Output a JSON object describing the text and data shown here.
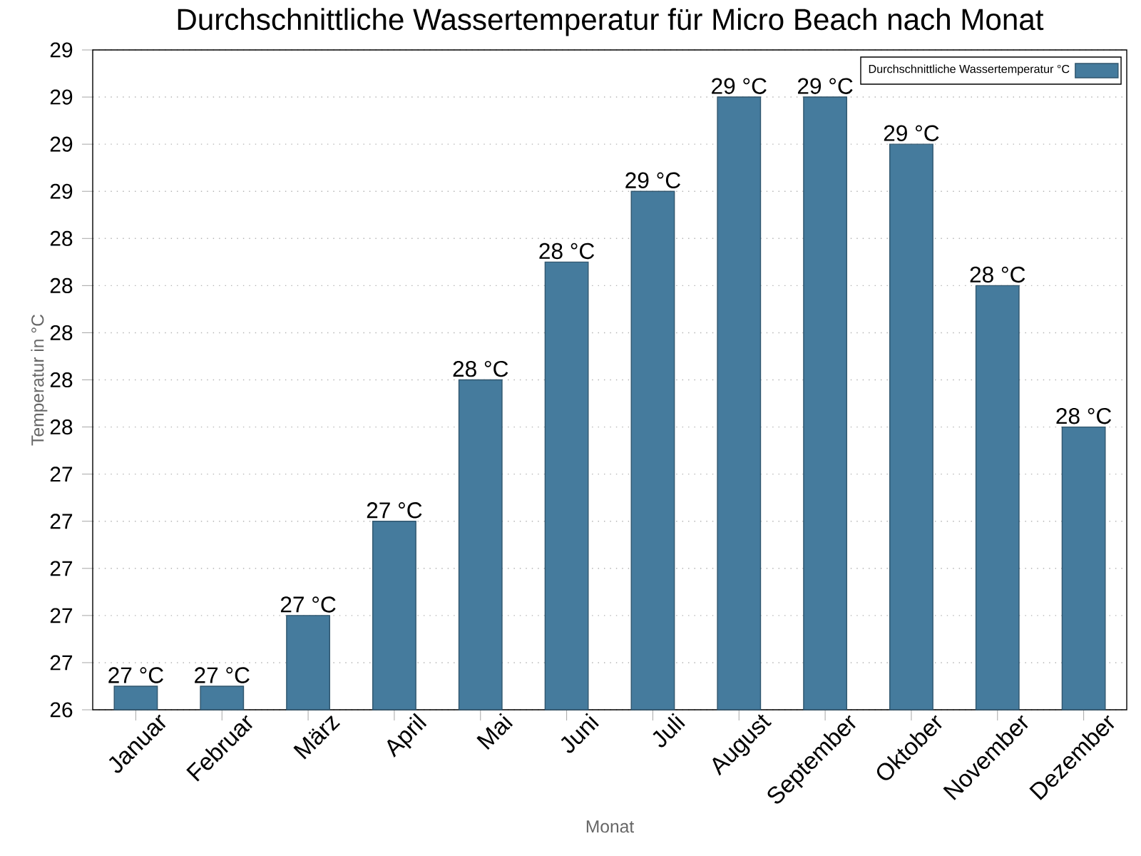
{
  "chart_data": {
    "type": "bar",
    "title": "Durchschnittliche Wassertemperatur für Micro Beach nach Monat",
    "xlabel": "Monat",
    "ylabel": "Temperatur in °C",
    "categories": [
      "Januar",
      "Februar",
      "März",
      "April",
      "Mai",
      "Juni",
      "Juli",
      "August",
      "September",
      "Oktober",
      "November",
      "Dezember"
    ],
    "series": [
      {
        "name": "Durchschnittliche Wassertemperatur °C",
        "color": "#457b9d",
        "values": [
          26.5,
          26.5,
          26.8,
          27.2,
          27.8,
          28.3,
          28.6,
          29.0,
          29.0,
          28.8,
          28.2,
          27.6
        ],
        "value_labels": [
          "27 °C",
          "27 °C",
          "27 °C",
          "27 °C",
          "28 °C",
          "28 °C",
          "29 °C",
          "29 °C",
          "29 °C",
          "29 °C",
          "28 °C",
          "28 °C"
        ]
      }
    ],
    "ylim": [
      26.4,
      29.2
    ],
    "yticks": [
      {
        "value": 26.4,
        "label": "26"
      },
      {
        "value": 26.6,
        "label": "27"
      },
      {
        "value": 26.8,
        "label": "27"
      },
      {
        "value": 27.0,
        "label": "27"
      },
      {
        "value": 27.2,
        "label": "27"
      },
      {
        "value": 27.4,
        "label": "27"
      },
      {
        "value": 27.6,
        "label": "28"
      },
      {
        "value": 27.8,
        "label": "28"
      },
      {
        "value": 28.0,
        "label": "28"
      },
      {
        "value": 28.2,
        "label": "28"
      },
      {
        "value": 28.4,
        "label": "28"
      },
      {
        "value": 28.6,
        "label": "29"
      },
      {
        "value": 28.8,
        "label": "29"
      },
      {
        "value": 29.0,
        "label": "29"
      },
      {
        "value": 29.2,
        "label": "29"
      }
    ],
    "grid": "y",
    "legend": "top right"
  }
}
